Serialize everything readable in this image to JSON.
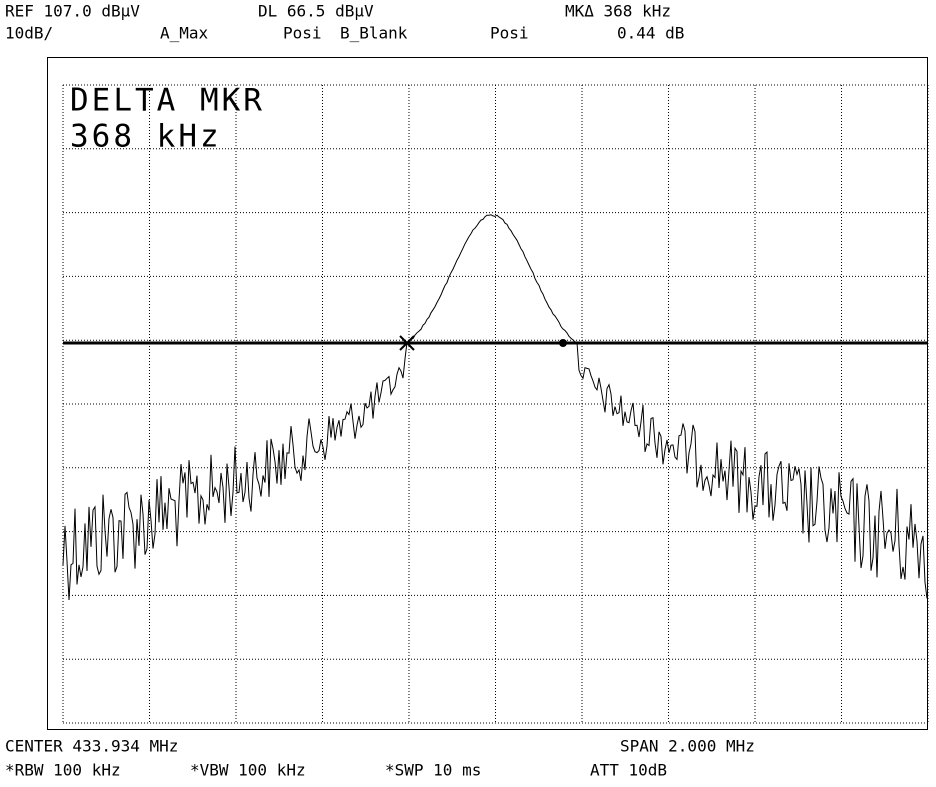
{
  "status_top": [
    [
      "REF 107.0 dBµV",
      "DL 66.5 dBµV",
      "MKΔ 368 kHz"
    ],
    [
      "10dB/",
      "A_Max",
      "Posi",
      "B_Blank",
      "Posi",
      "0.44 dB"
    ]
  ],
  "marker_readout": [
    "DELTA MKR",
    "368 kHz"
  ],
  "status_bottom": [
    [
      "CENTER 433.934 MHz",
      "SPAN 2.000 MHz"
    ],
    [
      "*RBW 100 kHz",
      "*VBW 100 kHz",
      "*SWP 10 ms",
      "ATT 10dB"
    ]
  ]
}
